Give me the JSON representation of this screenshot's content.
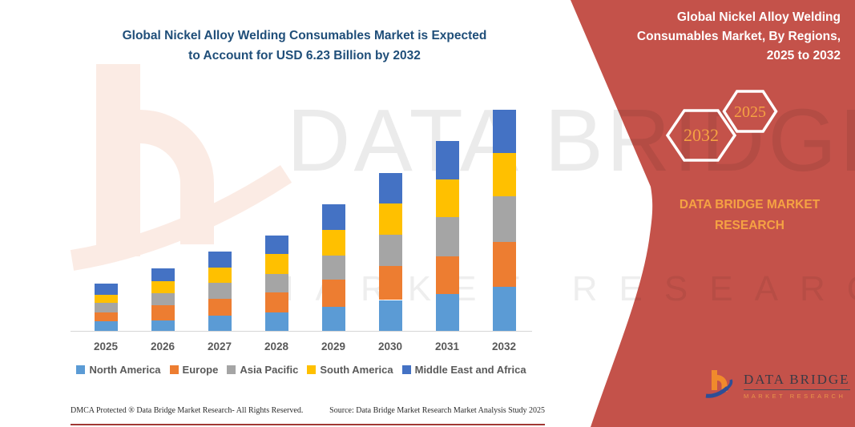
{
  "left": {
    "title_lines": [
      "Global Nickel Alloy Welding Consumables Market is Expected",
      "to Account for USD 6.23 Billion by 2032"
    ],
    "footer_left": "DMCA Protected ® Data Bridge Market Research-  All Rights Reserved.",
    "footer_source": "Source: Data Bridge Market Research  Market Analysis Study 2025"
  },
  "chart_data": {
    "type": "bar",
    "stacked": true,
    "title": "Global Nickel Alloy Welding Consumables Market is Expected to Account for USD 6.23 Billion by 2032",
    "unit": "USD Billion",
    "xlabel": "",
    "ylabel": "",
    "ylim": [
      0,
      6.5
    ],
    "grid": false,
    "legend_position": "bottom",
    "categories": [
      "2025",
      "2026",
      "2027",
      "2028",
      "2029",
      "2030",
      "2031",
      "2032"
    ],
    "totals": [
      1.33,
      1.75,
      2.23,
      2.69,
      3.57,
      4.45,
      5.35,
      6.23
    ],
    "series": [
      {
        "name": "North America",
        "color": "#5B9BD5",
        "values": [
          0.28,
          0.3,
          0.44,
          0.52,
          0.68,
          0.87,
          1.04,
          1.24
        ]
      },
      {
        "name": "Europe",
        "color": "#ED7D31",
        "values": [
          0.23,
          0.42,
          0.46,
          0.57,
          0.77,
          0.96,
          1.07,
          1.27
        ]
      },
      {
        "name": "Asia Pacific",
        "color": "#A5A5A5",
        "values": [
          0.28,
          0.35,
          0.45,
          0.51,
          0.68,
          0.87,
          1.09,
          1.29
        ]
      },
      {
        "name": "South America",
        "color": "#FFC000",
        "values": [
          0.23,
          0.34,
          0.43,
          0.57,
          0.71,
          0.9,
          1.06,
          1.22
        ]
      },
      {
        "name": "Middle East and Africa",
        "color": "#4472C4",
        "values": [
          0.31,
          0.34,
          0.45,
          0.52,
          0.73,
          0.85,
          1.09,
          1.21
        ]
      }
    ]
  },
  "right_panel": {
    "title_lines": [
      "Global Nickel Alloy Welding",
      "Consumables Market, By Regions,",
      "2025 to 2032"
    ],
    "hexagons": {
      "back_label": "2032",
      "front_label": "2025"
    },
    "brand_lines": [
      "DATA BRIDGE MARKET",
      "RESEARCH"
    ],
    "logo": {
      "name": "DATA BRIDGE",
      "subtitle": "MARKET RESEARCH"
    },
    "colors": {
      "panel": "#C4524A",
      "accent_text": "#F5A243",
      "title_text": "#1F4E79"
    }
  },
  "watermark": {
    "line1": "DATA BRIDGE",
    "line2": "MARKET RESEARCH"
  }
}
